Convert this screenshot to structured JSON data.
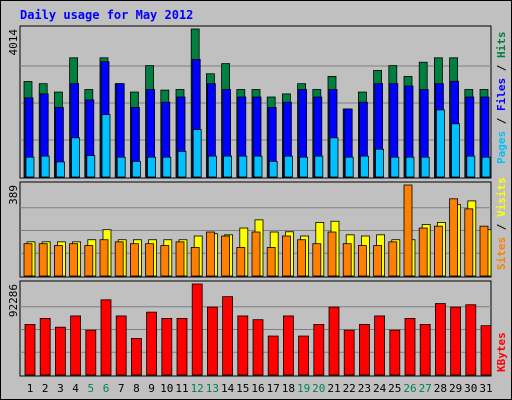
{
  "title": "Daily usage for May 2012",
  "colors": {
    "hits": "#008040",
    "files": "#0000ff",
    "pages": "#00c0ff",
    "visits": "#ffff00",
    "sites": "#ff8000",
    "kbytes": "#ff0000",
    "weekend": "#00805c",
    "title": "#0000ff"
  },
  "chart_data": [
    {
      "type": "bar",
      "title": "Daily usage for May 2012",
      "categories": [
        "1",
        "2",
        "3",
        "4",
        "5",
        "6",
        "7",
        "8",
        "9",
        "10",
        "11",
        "12",
        "13",
        "14",
        "15",
        "16",
        "17",
        "18",
        "19",
        "20",
        "21",
        "22",
        "23",
        "24",
        "25",
        "26",
        "27",
        "28",
        "29",
        "30",
        "31"
      ],
      "weekend_days": [
        "5",
        "6",
        "12",
        "13",
        "19",
        "20",
        "26",
        "27"
      ],
      "ymax_label": "4014",
      "ylim": [
        0,
        4014
      ],
      "grid": true,
      "legend": "right",
      "series": [
        {
          "name": "Hits",
          "values": [
            2590,
            2531,
            2304,
            3233,
            2373,
            3233,
            2531,
            2304,
            3021,
            2357,
            2373,
            4014,
            2800,
            3075,
            2373,
            2373,
            2169,
            2254,
            2531,
            2373,
            2728,
            1845,
            2304,
            2891,
            3021,
            2728,
            3113,
            3233,
            3233,
            2373,
            2373
          ]
        },
        {
          "name": "Files",
          "values": [
            2147,
            2254,
            1887,
            2531,
            2090,
            3126,
            2531,
            1887,
            2373,
            2027,
            2169,
            3190,
            2531,
            2373,
            2169,
            2169,
            1887,
            2027,
            2373,
            2169,
            2373,
            1845,
            2027,
            2531,
            2531,
            2467,
            2373,
            2531,
            2596,
            2169,
            2169
          ]
        },
        {
          "name": "Pages",
          "values": [
            537,
            566,
            410,
            1063,
            581,
            1694,
            537,
            424,
            537,
            537,
            695,
            1286,
            566,
            566,
            566,
            566,
            424,
            566,
            537,
            566,
            1063,
            537,
            566,
            753,
            537,
            537,
            537,
            1820,
            1443,
            566,
            537
          ]
        }
      ]
    },
    {
      "type": "bar",
      "categories": [
        "1",
        "2",
        "3",
        "4",
        "5",
        "6",
        "7",
        "8",
        "9",
        "10",
        "11",
        "12",
        "13",
        "14",
        "15",
        "16",
        "17",
        "18",
        "19",
        "20",
        "21",
        "22",
        "23",
        "24",
        "25",
        "26",
        "27",
        "28",
        "29",
        "30",
        "31"
      ],
      "ymax_label": "389",
      "ylim": [
        0,
        389
      ],
      "grid": true,
      "legend": "right",
      "series": [
        {
          "name": "Visits",
          "values": [
            146,
            146,
            146,
            146,
            155,
            198,
            155,
            155,
            155,
            155,
            155,
            171,
            181,
            176,
            205,
            240,
            188,
            189,
            171,
            229,
            234,
            176,
            171,
            176,
            155,
            155,
            220,
            229,
            305,
            321,
            198
          ]
        },
        {
          "name": "Sites",
          "values": [
            138,
            138,
            130,
            138,
            130,
            155,
            146,
            138,
            138,
            130,
            146,
            122,
            188,
            171,
            122,
            188,
            122,
            171,
            155,
            138,
            188,
            138,
            130,
            130,
            146,
            389,
            205,
            213,
            330,
            287,
            213
          ]
        }
      ]
    },
    {
      "type": "bar",
      "categories": [
        "1",
        "2",
        "3",
        "4",
        "5",
        "6",
        "7",
        "8",
        "9",
        "10",
        "11",
        "12",
        "13",
        "14",
        "15",
        "16",
        "17",
        "18",
        "19",
        "20",
        "21",
        "22",
        "23",
        "24",
        "25",
        "26",
        "27",
        "28",
        "29",
        "30",
        "31"
      ],
      "ymax_label": "92286",
      "ylim": [
        0,
        92286
      ],
      "grid": true,
      "legend": "right",
      "series": [
        {
          "name": "KBytes",
          "values": [
            51300,
            57380,
            48500,
            59890,
            45480,
            76270,
            59890,
            37120,
            63750,
            57380,
            57380,
            92286,
            68850,
            79440,
            59890,
            56100,
            39500,
            59890,
            39500,
            51300,
            68850,
            45480,
            51300,
            59890,
            45480,
            57380,
            51300,
            72450,
            68850,
            71260,
            50000
          ]
        }
      ]
    }
  ]
}
